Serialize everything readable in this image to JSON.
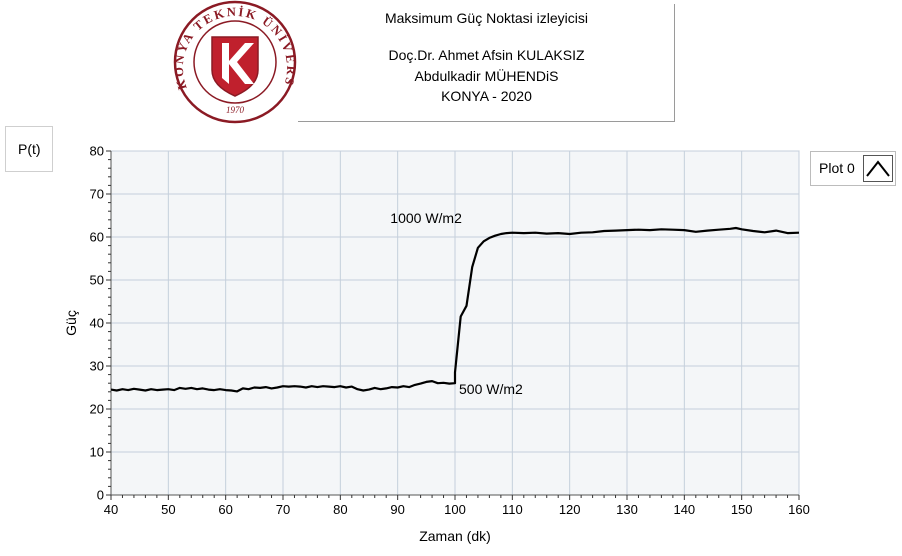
{
  "header": {
    "line1": "Maksimum Güç Noktasi izleyicisi",
    "line2": "Doç.Dr. Ahmet Afsin KULAKSIZ",
    "line3": "Abdulkadir MÜHENDiS",
    "line4": "KONYA - 2020"
  },
  "logo": {
    "ring_text": "KONYA TEKNİK ÜNİVERSİTESİ",
    "year": "1970",
    "colors": {
      "ring": "#8b1a24",
      "fill": "#c0202d"
    }
  },
  "plot_label": "P(t)",
  "legend": {
    "label": "Plot 0",
    "icon": "line-plot-icon"
  },
  "chart_data": {
    "type": "line",
    "xlabel": "Zaman (dk)",
    "ylabel": "Güç",
    "xlim": [
      40,
      160
    ],
    "ylim": [
      0,
      80
    ],
    "x_ticks": [
      40,
      50,
      60,
      70,
      80,
      90,
      100,
      110,
      120,
      130,
      140,
      150,
      160
    ],
    "y_ticks": [
      0,
      10,
      20,
      30,
      40,
      50,
      60,
      70,
      80
    ],
    "grid": true,
    "line_color": "#000000",
    "plot_background": "#f4f6f8",
    "annotations": [
      {
        "text": "1000 W/m2",
        "x": 101.2,
        "y": 63.2
      },
      {
        "text": "500 W/m2",
        "x": 100.7,
        "y": 23.5
      }
    ],
    "series": [
      {
        "x": [
          40,
          41,
          42,
          43,
          44,
          45,
          46,
          47,
          48,
          49,
          50,
          51,
          52,
          53,
          54,
          55,
          56,
          57,
          58,
          59,
          60,
          61,
          62,
          63,
          64,
          65,
          66,
          67,
          68,
          69,
          70,
          71,
          72,
          73,
          74,
          75,
          76,
          77,
          78,
          79,
          80,
          81,
          82,
          83,
          84,
          85,
          86,
          87,
          88,
          89,
          90,
          91,
          92,
          93,
          94,
          95,
          96,
          97,
          98,
          99,
          100,
          100,
          101,
          102,
          103,
          104,
          105,
          106,
          107,
          108,
          109,
          110,
          112,
          114,
          116,
          118,
          120,
          122,
          124,
          126,
          128,
          130,
          132,
          134,
          136,
          138,
          140,
          142,
          144,
          146,
          148,
          149,
          150,
          152,
          154,
          156,
          158,
          160
        ],
        "values": [
          24.5,
          24.3,
          24.6,
          24.4,
          24.7,
          24.5,
          24.3,
          24.6,
          24.4,
          24.5,
          24.6,
          24.4,
          24.9,
          24.7,
          24.9,
          24.6,
          24.8,
          24.5,
          24.4,
          24.6,
          24.4,
          24.3,
          24.1,
          24.8,
          24.6,
          25.0,
          24.9,
          25.1,
          24.8,
          25.0,
          25.3,
          25.2,
          25.3,
          25.2,
          25.0,
          25.3,
          25.1,
          25.3,
          25.2,
          25.1,
          25.3,
          25.0,
          25.2,
          24.6,
          24.3,
          24.5,
          24.9,
          24.6,
          24.8,
          25.1,
          25.0,
          25.3,
          25.1,
          25.6,
          25.9,
          26.3,
          26.5,
          26.0,
          26.1,
          25.9,
          26.0,
          28.5,
          41.5,
          44.0,
          53.0,
          57.5,
          59.0,
          59.8,
          60.3,
          60.7,
          60.9,
          61.0,
          60.9,
          61.0,
          60.8,
          60.9,
          60.7,
          61.0,
          61.1,
          61.4,
          61.5,
          61.6,
          61.7,
          61.6,
          61.8,
          61.7,
          61.6,
          61.2,
          61.5,
          61.7,
          61.9,
          62.1,
          61.8,
          61.4,
          61.1,
          61.5,
          60.9,
          61.0
        ]
      }
    ]
  }
}
